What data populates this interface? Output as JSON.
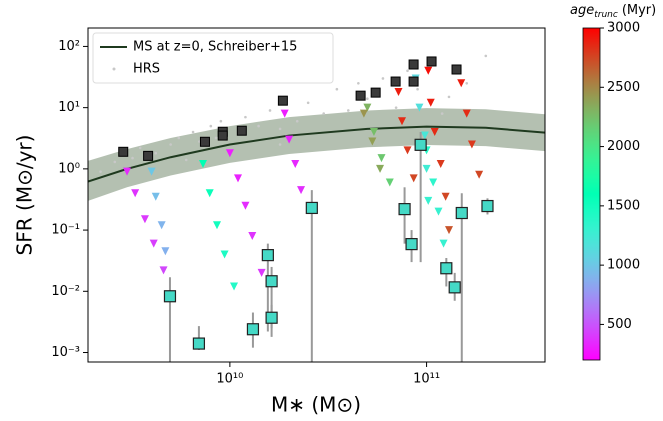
{
  "chart_data": {
    "type": "scatter",
    "xlabel": "M∗ (M⊙)",
    "ylabel": "SFR (M⊙/yr)",
    "xscale": "log",
    "yscale": "log",
    "xlim": [
      1900000000.0,
      400000000000.0
    ],
    "ylim": [
      0.0007,
      200
    ],
    "xticks": [
      {
        "value": 10000000000.0,
        "label": "10¹⁰"
      },
      {
        "value": 100000000000.0,
        "label": "10¹¹"
      }
    ],
    "yticks": [
      {
        "value": 0.001,
        "label": "10⁻³"
      },
      {
        "value": 0.01,
        "label": "10⁻²"
      },
      {
        "value": 0.1,
        "label": "10⁻¹"
      },
      {
        "value": 1,
        "label": "10⁰"
      },
      {
        "value": 10,
        "label": "10¹"
      },
      {
        "value": 100,
        "label": "10²"
      }
    ],
    "legend_loc": "upper left",
    "colorbar": {
      "label": "age",
      "label_sub": "trunc",
      "label_unit": "(Myr)",
      "colormap": "rainbow",
      "clim": [
        200,
        3000
      ],
      "ticks": [
        500,
        1000,
        1500,
        2000,
        2500,
        3000
      ]
    },
    "ms": {
      "name": "MS at z=0, Schreiber+15",
      "color": "#1f3a1f",
      "band_color": "#a7b5a3",
      "x": [
        1900000000.0,
        3000000000.0,
        5000000000.0,
        10000000000.0,
        20000000000.0,
        50000000000.0,
        100000000000.0,
        200000000000.0,
        400000000000.0
      ],
      "y": [
        0.62,
        1.0,
        1.55,
        2.5,
        3.5,
        4.5,
        4.9,
        4.7,
        3.9
      ],
      "upper": [
        1.35,
        2.1,
        3.2,
        5.0,
        7.0,
        9.0,
        9.8,
        9.4,
        7.8
      ],
      "lower": [
        0.3,
        0.5,
        0.78,
        1.25,
        1.75,
        2.25,
        2.45,
        2.35,
        1.95
      ]
    },
    "hrs": {
      "name": "HRS",
      "color": "#c8c8c8",
      "x": [
        2200000000.0,
        2600000000.0,
        3200000000.0,
        3500000000.0,
        4200000000.0,
        5000000000.0,
        5500000000.0,
        6000000000.0,
        6500000000.0,
        7000000000.0,
        8000000000.0,
        8500000000.0,
        9000000000.0,
        11000000000.0,
        12000000000.0,
        14000000000.0,
        16000000000.0,
        18000000000.0,
        22000000000.0,
        25000000000.0,
        30000000000.0,
        35000000000.0,
        40000000000.0,
        45000000000.0,
        50000000000.0,
        60000000000.0,
        70000000000.0,
        80000000000.0,
        90000000000.0,
        110000000000.0,
        130000000000.0,
        160000000000.0,
        200000000000.0,
        120000000000.0,
        18000000000.0
      ],
      "y": [
        0.9,
        1.3,
        1.5,
        2.2,
        1.8,
        2.5,
        3.2,
        1.4,
        4,
        2.8,
        5,
        3.2,
        6,
        3.8,
        7,
        5,
        9,
        4.5,
        6,
        12,
        8,
        20,
        9,
        25,
        14,
        30,
        10,
        40,
        20,
        60,
        15,
        25,
        70,
        8,
        2.5
      ]
    },
    "tracks": {
      "x": [
        3000000000.0,
        3300000000.0,
        3700000000.0,
        4100000000.0,
        4600000000.0,
        4000000000.0,
        4200000000.0,
        4500000000.0,
        4700000000.0,
        7300000000.0,
        7900000000.0,
        8600000000.0,
        9400000000.0,
        10500000000.0,
        10000000000.0,
        11000000000.0,
        12000000000.0,
        13000000000.0,
        14500000000.0,
        19000000000.0,
        20000000000.0,
        21500000000.0,
        23000000000.0,
        50000000000.0,
        54000000000.0,
        59000000000.0,
        65000000000.0,
        72000000000.0,
        75000000000.0,
        80000000000.0,
        86000000000.0,
        88000000000.0,
        92000000000.0,
        98000000000.0,
        100000000000.0,
        102000000000.0,
        102000000000.0,
        105000000000.0,
        110000000000.0,
        118000000000.0,
        125000000000.0,
        130000000000.0,
        100000000000.0,
        108000000000.0,
        115000000000.0,
        122000000000.0,
        150000000000.0,
        160000000000.0,
        170000000000.0,
        185000000000.0,
        48000000000.0,
        53000000000.0,
        58000000000.0
      ],
      "y": [
        0.9,
        0.4,
        0.15,
        0.06,
        0.022,
        0.9,
        0.35,
        0.12,
        0.045,
        1.2,
        0.4,
        0.12,
        0.04,
        0.012,
        1.8,
        0.7,
        0.25,
        0.08,
        0.02,
        8,
        3,
        1.2,
        0.45,
        10,
        4,
        1.5,
        0.6,
        18,
        6,
        2,
        0.7,
        30,
        10,
        3.5,
        1.0,
        0.3,
        40,
        12,
        4,
        1.2,
        0.35,
        0.1,
        2,
        0.6,
        0.2,
        0.06,
        25,
        8,
        2.5,
        0.8,
        8,
        2.8,
        1
      ],
      "age": [
        350,
        380,
        400,
        420,
        450,
        1000,
        950,
        900,
        880,
        1600,
        1550,
        1500,
        1450,
        1400,
        300,
        320,
        350,
        380,
        400,
        300,
        320,
        340,
        360,
        2300,
        2250,
        2200,
        2150,
        2900,
        2850,
        2800,
        2750,
        1100,
        1150,
        1200,
        1250,
        1300,
        2950,
        2900,
        2850,
        2800,
        2750,
        2700,
        1400,
        1350,
        1300,
        1300,
        2900,
        2850,
        2800,
        2750,
        2450,
        2400,
        2350
      ]
    },
    "observed": {
      "color": "#3a3a3a",
      "x": [
        2870000000.0,
        3840000000.0,
        7470000000.0,
        9200000000.0,
        9200000000.0,
        11500000000.0,
        18600000000.0,
        46200000000.0,
        55100000000.0,
        69600000000.0,
        85900000000.0,
        85900000000.0,
        106000000000.0,
        142000000000.0
      ],
      "y": [
        1.9,
        1.63,
        2.77,
        4.04,
        3.5,
        4.2,
        13,
        15.7,
        17.6,
        26.7,
        50.7,
        26.7,
        56.8,
        42
      ]
    },
    "truncated": {
      "color": "#45d9c6",
      "err_color": "#999999",
      "x": [
        4960000000.0,
        6960000000.0,
        13100000000.0,
        15600000000.0,
        16300000000.0,
        16300000000.0,
        26100000000.0,
        77300000000.0,
        83900000000.0,
        93300000000.0,
        126000000000.0,
        139000000000.0,
        151000000000.0,
        204000000000.0
      ],
      "y": [
        0.0083,
        0.0014,
        0.0024,
        0.039,
        0.0146,
        0.0037,
        0.23,
        0.22,
        0.059,
        2.47,
        0.0238,
        0.0116,
        0.19,
        0.247
      ],
      "ylow": [
        0.0007,
        0.0011,
        0.0012,
        0.0022,
        0.0025,
        0.0018,
        0.0007,
        0.06,
        0.03,
        0.03,
        0.012,
        0.007,
        0.0007,
        0.18
      ],
      "yhigh": [
        0.017,
        0.0027,
        0.0045,
        0.06,
        0.025,
        0.006,
        0.45,
        0.5,
        0.1,
        4,
        0.035,
        0.02,
        0.4,
        0.33
      ]
    }
  }
}
